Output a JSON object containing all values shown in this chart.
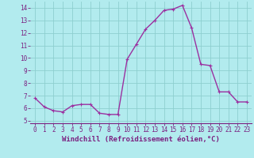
{
  "hours": [
    0,
    1,
    2,
    3,
    4,
    5,
    6,
    7,
    8,
    9,
    10,
    11,
    12,
    13,
    14,
    15,
    16,
    17,
    18,
    19,
    20,
    21,
    22,
    23
  ],
  "values": [
    6.8,
    6.1,
    5.8,
    5.7,
    6.2,
    6.3,
    6.3,
    5.6,
    5.5,
    5.5,
    9.9,
    11.1,
    12.3,
    13.0,
    13.8,
    13.9,
    14.2,
    12.4,
    9.5,
    9.4,
    7.3,
    7.3,
    6.5,
    6.5
  ],
  "line_color": "#9b30a0",
  "marker": "+",
  "marker_size": 3,
  "background_color": "#b2ebee",
  "grid_color": "#8ecfcf",
  "axis_color": "#7b2080",
  "xlabel": "Windchill (Refroidissement éolien,°C)",
  "ylim": [
    4.8,
    14.5
  ],
  "xlim": [
    -0.5,
    23.5
  ],
  "yticks": [
    5,
    6,
    7,
    8,
    9,
    10,
    11,
    12,
    13,
    14
  ],
  "xticks": [
    0,
    1,
    2,
    3,
    4,
    5,
    6,
    7,
    8,
    9,
    10,
    11,
    12,
    13,
    14,
    15,
    16,
    17,
    18,
    19,
    20,
    21,
    22,
    23
  ],
  "tick_fontsize": 5.5,
  "xlabel_fontsize": 6.5,
  "line_width": 1.0,
  "marker_edge_width": 0.8
}
